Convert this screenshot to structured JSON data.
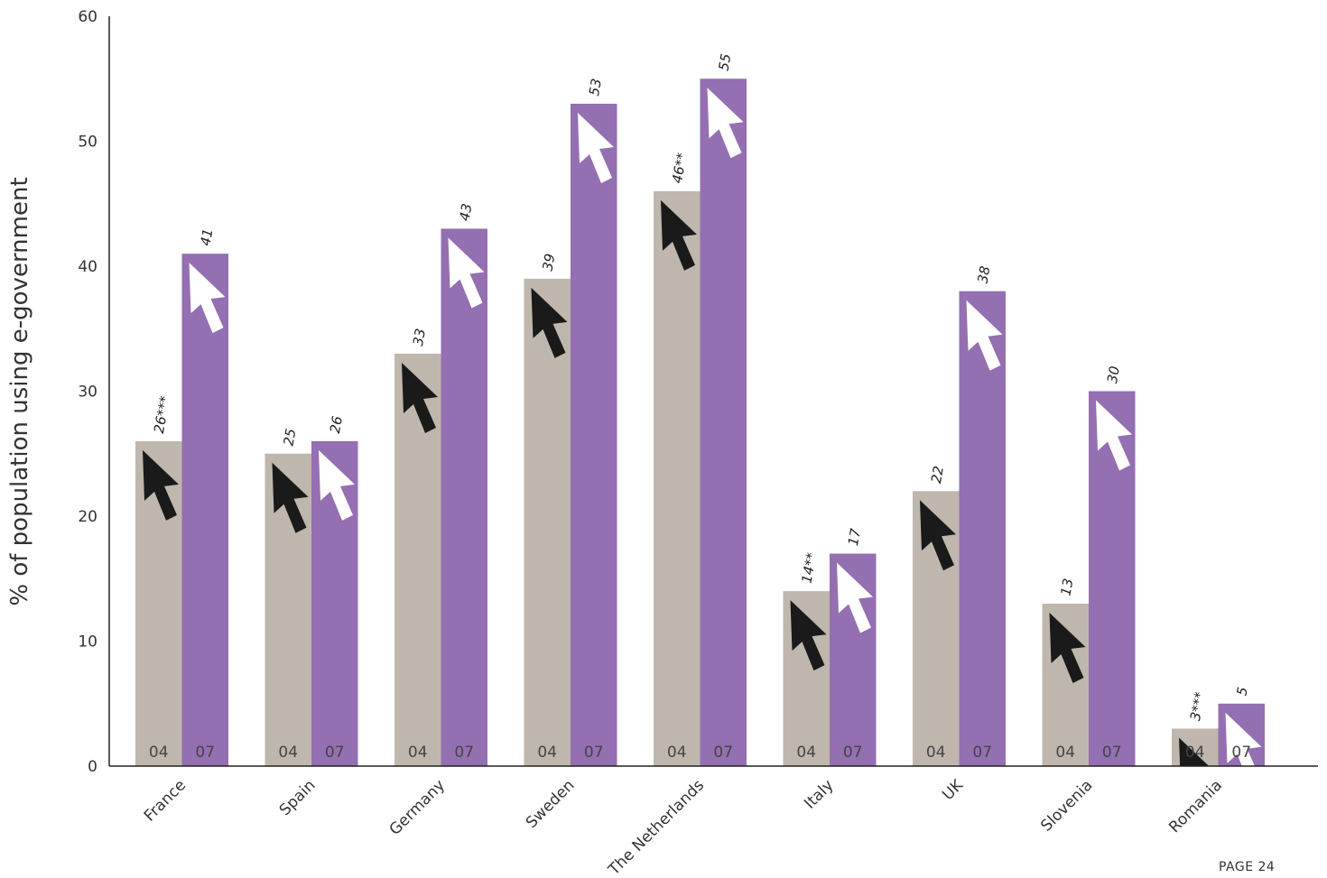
{
  "chart_data": {
    "type": "bar",
    "ylabel": "% of population using e-government",
    "ylim": [
      0,
      60
    ],
    "yticks": [
      0,
      10,
      20,
      30,
      40,
      50,
      60
    ],
    "grid": false,
    "categories": [
      "France",
      "Spain",
      "Germany",
      "Sweden",
      "The Netherlands",
      "Italy",
      "UK",
      "Slovenia",
      "Romania"
    ],
    "series": [
      {
        "name": "04",
        "color": "#bfb7ad",
        "arrow": "black-cursor-icon",
        "values": [
          26,
          25,
          33,
          39,
          46,
          14,
          22,
          13,
          3
        ],
        "labels": [
          "26***",
          "25",
          "33",
          "39",
          "46**",
          "14**",
          "22",
          "13",
          "3***"
        ]
      },
      {
        "name": "07",
        "color": "#946fb2",
        "arrow": "white-cursor-icon",
        "values": [
          41,
          26,
          43,
          53,
          55,
          17,
          38,
          30,
          5
        ],
        "labels": [
          "41",
          "26",
          "43",
          "53",
          "55",
          "17",
          "38",
          "30",
          "5"
        ]
      }
    ]
  },
  "footer": {
    "page": "PAGE 24"
  }
}
